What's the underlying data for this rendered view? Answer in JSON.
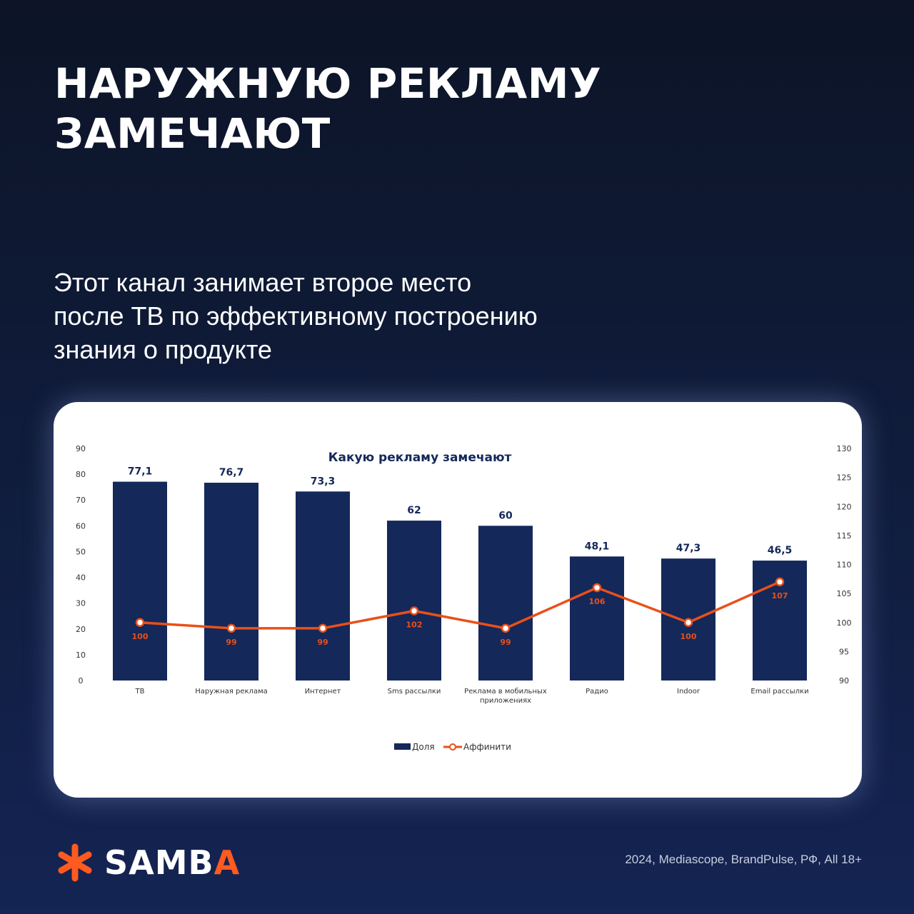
{
  "headline": {
    "line1": "НАРУЖНУЮ РЕКЛАМУ",
    "line2": "ЗАМЕЧАЮТ"
  },
  "subtitle": {
    "line1": "Этот канал занимает второе место",
    "line2": "после ТВ по эффективному построению",
    "line3": "знания о продукте"
  },
  "colors": {
    "bar": "#14285a",
    "line": "#e8501a",
    "accent": "#ff5a1f",
    "axis_text": "#333333"
  },
  "chart_data": {
    "type": "bar",
    "title": "Какую рекламу замечают",
    "categories": [
      "ТВ",
      "Наружная реклама",
      "Интернет",
      "Sms рассылки",
      "Реклама в мобильных приложениях",
      "Радио",
      "Indoor",
      "Email рассылки"
    ],
    "category_lines": [
      [
        "ТВ"
      ],
      [
        "Наружная реклама"
      ],
      [
        "Интернет"
      ],
      [
        "Sms рассылки"
      ],
      [
        "Реклама в мобильных",
        "приложениях"
      ],
      [
        "Радио"
      ],
      [
        "Indoor"
      ],
      [
        "Email рассылки"
      ]
    ],
    "series": [
      {
        "name": "Доля",
        "type": "bar",
        "axis": "left",
        "values": [
          77.1,
          76.7,
          73.3,
          62,
          60,
          48.1,
          47.3,
          46.5
        ],
        "labels": [
          "77,1",
          "76,7",
          "73,3",
          "62",
          "60",
          "48,1",
          "47,3",
          "46,5"
        ]
      },
      {
        "name": "Аффинити",
        "type": "line",
        "axis": "right",
        "values": [
          100,
          99,
          99,
          102,
          99,
          106,
          100,
          107
        ],
        "labels": [
          "100",
          "99",
          "99",
          "102",
          "99",
          "106",
          "100",
          "107"
        ]
      }
    ],
    "y_left": {
      "range": [
        0,
        90
      ],
      "ticks": [
        0,
        10,
        20,
        30,
        40,
        50,
        60,
        70,
        80,
        90
      ]
    },
    "y_right": {
      "range": [
        90,
        130
      ],
      "ticks": [
        90,
        95,
        100,
        105,
        110,
        115,
        120,
        125,
        130
      ]
    },
    "grid": false,
    "legend": "bottom-center"
  },
  "footer": {
    "logo_main": "SAMB",
    "logo_accent": "A",
    "logo_icon": "asterisk-icon",
    "source": "2024, Mediascope, BrandPulse, РФ, All 18+"
  }
}
